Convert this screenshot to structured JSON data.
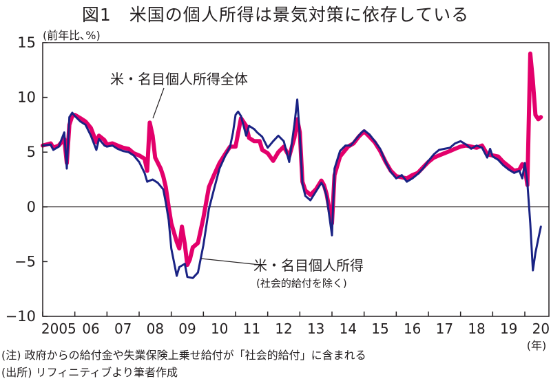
{
  "title": "図1　米国の個人所得は景気対策に依存している",
  "unit_label": "(前年比､%)",
  "year_suffix": "(年)",
  "notes": [
    "(注) 政府からの給付金や失業保険上乗せ給付が「社会的給付」に含まれる",
    "(出所) リフィニティブより筆者作成"
  ],
  "chart_data": {
    "type": "line",
    "title": "図1　米国の個人所得は景気対策に依存している",
    "ylabel": "(前年比､%)",
    "xlabel": "(年)",
    "ylim": [
      -10,
      15
    ],
    "xlim": [
      2005.0,
      2020.75
    ],
    "yticks": [
      15,
      10,
      5,
      0,
      -5,
      -10
    ],
    "ytick_labels": [
      "15",
      "10",
      "5",
      "0",
      "−5",
      "−10"
    ],
    "xticks": [
      {
        "x": 2005.0,
        "label": "2005"
      },
      {
        "x": 2006.0,
        "label": "06"
      },
      {
        "x": 2007.0,
        "label": "07"
      },
      {
        "x": 2008.0,
        "label": "08"
      },
      {
        "x": 2009.0,
        "label": "09"
      },
      {
        "x": 2010.0,
        "label": "10"
      },
      {
        "x": 2011.0,
        "label": "11"
      },
      {
        "x": 2012.0,
        "label": "12"
      },
      {
        "x": 2013.0,
        "label": "13"
      },
      {
        "x": 2014.0,
        "label": "14"
      },
      {
        "x": 2015.0,
        "label": "15"
      },
      {
        "x": 2016.0,
        "label": "16"
      },
      {
        "x": 2017.0,
        "label": "17"
      },
      {
        "x": 2018.0,
        "label": "18"
      },
      {
        "x": 2019.0,
        "label": "19"
      },
      {
        "x": 2020.0,
        "label": "20"
      }
    ],
    "grid": false,
    "reference_line": 0,
    "series": [
      {
        "name": "米・名目個人所得全体",
        "color": "#e3006b",
        "points": [
          [
            2005.0,
            5.6
          ],
          [
            2005.25,
            5.8
          ],
          [
            2005.33,
            5.4
          ],
          [
            2005.5,
            5.6
          ],
          [
            2005.67,
            6.2
          ],
          [
            2005.75,
            4.0
          ],
          [
            2005.83,
            7.5
          ],
          [
            2005.92,
            8.3
          ],
          [
            2006.0,
            8.4
          ],
          [
            2006.17,
            8.1
          ],
          [
            2006.33,
            7.8
          ],
          [
            2006.5,
            7.2
          ],
          [
            2006.67,
            5.9
          ],
          [
            2006.75,
            6.5
          ],
          [
            2006.92,
            6.1
          ],
          [
            2007.0,
            5.7
          ],
          [
            2007.17,
            5.8
          ],
          [
            2007.33,
            5.6
          ],
          [
            2007.5,
            5.4
          ],
          [
            2007.67,
            5.3
          ],
          [
            2007.83,
            4.9
          ],
          [
            2008.0,
            4.7
          ],
          [
            2008.17,
            4.4
          ],
          [
            2008.25,
            3.3
          ],
          [
            2008.33,
            7.7
          ],
          [
            2008.42,
            6.5
          ],
          [
            2008.5,
            4.5
          ],
          [
            2008.67,
            3.5
          ],
          [
            2008.75,
            2.8
          ],
          [
            2008.83,
            1.8
          ],
          [
            2008.92,
            0.0
          ],
          [
            2009.0,
            -1.5
          ],
          [
            2009.17,
            -3.2
          ],
          [
            2009.25,
            -3.8
          ],
          [
            2009.33,
            -1.8
          ],
          [
            2009.42,
            -3.4
          ],
          [
            2009.5,
            -5.3
          ],
          [
            2009.58,
            -4.8
          ],
          [
            2009.67,
            -3.7
          ],
          [
            2009.83,
            -3.3
          ],
          [
            2010.0,
            -1.0
          ],
          [
            2010.17,
            1.8
          ],
          [
            2010.33,
            2.9
          ],
          [
            2010.5,
            4.0
          ],
          [
            2010.67,
            4.8
          ],
          [
            2010.83,
            5.5
          ],
          [
            2011.0,
            5.5
          ],
          [
            2011.17,
            8.1
          ],
          [
            2011.33,
            7.4
          ],
          [
            2011.42,
            6.3
          ],
          [
            2011.58,
            6.0
          ],
          [
            2011.75,
            6.0
          ],
          [
            2011.83,
            5.2
          ],
          [
            2012.0,
            4.9
          ],
          [
            2012.17,
            4.2
          ],
          [
            2012.33,
            5.0
          ],
          [
            2012.5,
            5.5
          ],
          [
            2012.67,
            4.6
          ],
          [
            2012.83,
            6.3
          ],
          [
            2012.92,
            8.0
          ],
          [
            2013.0,
            6.8
          ],
          [
            2013.08,
            2.3
          ],
          [
            2013.17,
            1.5
          ],
          [
            2013.33,
            1.1
          ],
          [
            2013.5,
            1.6
          ],
          [
            2013.67,
            2.4
          ],
          [
            2013.75,
            2.0
          ],
          [
            2013.83,
            1.2
          ],
          [
            2014.0,
            -1.5
          ],
          [
            2014.08,
            2.9
          ],
          [
            2014.25,
            4.6
          ],
          [
            2014.5,
            5.5
          ],
          [
            2014.67,
            5.8
          ],
          [
            2014.83,
            6.4
          ],
          [
            2015.0,
            6.9
          ],
          [
            2015.17,
            6.4
          ],
          [
            2015.33,
            5.9
          ],
          [
            2015.5,
            5.1
          ],
          [
            2015.67,
            4.1
          ],
          [
            2015.83,
            3.3
          ],
          [
            2016.0,
            2.8
          ],
          [
            2016.17,
            2.7
          ],
          [
            2016.33,
            2.6
          ],
          [
            2016.5,
            2.9
          ],
          [
            2016.67,
            3.1
          ],
          [
            2016.83,
            3.6
          ],
          [
            2017.0,
            4.1
          ],
          [
            2017.17,
            4.5
          ],
          [
            2017.33,
            4.7
          ],
          [
            2017.5,
            4.9
          ],
          [
            2017.67,
            5.1
          ],
          [
            2017.83,
            5.3
          ],
          [
            2018.0,
            5.5
          ],
          [
            2018.17,
            5.6
          ],
          [
            2018.33,
            5.5
          ],
          [
            2018.5,
            5.4
          ],
          [
            2018.67,
            5.6
          ],
          [
            2018.83,
            4.8
          ],
          [
            2019.0,
            4.7
          ],
          [
            2019.17,
            4.6
          ],
          [
            2019.33,
            4.1
          ],
          [
            2019.5,
            3.7
          ],
          [
            2019.67,
            3.3
          ],
          [
            2019.83,
            3.4
          ],
          [
            2019.92,
            3.9
          ],
          [
            2020.0,
            3.6
          ],
          [
            2020.08,
            2.0
          ],
          [
            2020.17,
            14.0
          ],
          [
            2020.25,
            11.5
          ],
          [
            2020.33,
            8.4
          ],
          [
            2020.42,
            8.0
          ],
          [
            2020.5,
            8.2
          ]
        ]
      },
      {
        "name": "米・名目個人所得(社会的給付を除く)",
        "color": "#1a2384",
        "points": [
          [
            2005.0,
            5.6
          ],
          [
            2005.25,
            5.7
          ],
          [
            2005.33,
            5.2
          ],
          [
            2005.5,
            5.5
          ],
          [
            2005.67,
            6.8
          ],
          [
            2005.75,
            3.5
          ],
          [
            2005.83,
            8.2
          ],
          [
            2005.92,
            8.6
          ],
          [
            2006.0,
            8.3
          ],
          [
            2006.17,
            7.8
          ],
          [
            2006.33,
            7.5
          ],
          [
            2006.5,
            6.5
          ],
          [
            2006.67,
            5.2
          ],
          [
            2006.75,
            6.2
          ],
          [
            2006.92,
            5.6
          ],
          [
            2007.0,
            5.5
          ],
          [
            2007.17,
            5.6
          ],
          [
            2007.33,
            5.3
          ],
          [
            2007.5,
            5.1
          ],
          [
            2007.67,
            5.0
          ],
          [
            2007.83,
            4.7
          ],
          [
            2008.0,
            4.1
          ],
          [
            2008.17,
            3.1
          ],
          [
            2008.25,
            2.3
          ],
          [
            2008.42,
            2.5
          ],
          [
            2008.58,
            2.2
          ],
          [
            2008.75,
            1.6
          ],
          [
            2008.83,
            0.4
          ],
          [
            2008.92,
            -1.2
          ],
          [
            2009.0,
            -3.8
          ],
          [
            2009.17,
            -6.3
          ],
          [
            2009.25,
            -5.5
          ],
          [
            2009.42,
            -5.2
          ],
          [
            2009.5,
            -6.4
          ],
          [
            2009.67,
            -6.5
          ],
          [
            2009.83,
            -6.0
          ],
          [
            2010.0,
            -3.5
          ],
          [
            2010.17,
            -0.2
          ],
          [
            2010.33,
            1.6
          ],
          [
            2010.5,
            3.5
          ],
          [
            2010.67,
            4.6
          ],
          [
            2010.83,
            5.5
          ],
          [
            2010.92,
            6.8
          ],
          [
            2011.0,
            8.4
          ],
          [
            2011.08,
            8.7
          ],
          [
            2011.17,
            8.3
          ],
          [
            2011.33,
            6.5
          ],
          [
            2011.42,
            7.4
          ],
          [
            2011.58,
            7.1
          ],
          [
            2011.67,
            6.8
          ],
          [
            2011.83,
            6.4
          ],
          [
            2012.0,
            5.4
          ],
          [
            2012.17,
            6.0
          ],
          [
            2012.33,
            6.5
          ],
          [
            2012.5,
            6.0
          ],
          [
            2012.67,
            4.1
          ],
          [
            2012.83,
            7.5
          ],
          [
            2012.92,
            9.8
          ],
          [
            2013.0,
            6.5
          ],
          [
            2013.08,
            2.1
          ],
          [
            2013.17,
            1.0
          ],
          [
            2013.33,
            0.6
          ],
          [
            2013.5,
            1.4
          ],
          [
            2013.67,
            2.2
          ],
          [
            2013.75,
            1.8
          ],
          [
            2013.83,
            1.0
          ],
          [
            2014.0,
            -2.6
          ],
          [
            2014.08,
            3.5
          ],
          [
            2014.25,
            5.1
          ],
          [
            2014.42,
            5.6
          ],
          [
            2014.58,
            5.6
          ],
          [
            2014.75,
            6.2
          ],
          [
            2014.92,
            6.8
          ],
          [
            2015.0,
            7.0
          ],
          [
            2015.17,
            6.6
          ],
          [
            2015.33,
            6.0
          ],
          [
            2015.5,
            5.3
          ],
          [
            2015.67,
            4.1
          ],
          [
            2015.83,
            3.2
          ],
          [
            2016.0,
            2.6
          ],
          [
            2016.17,
            2.9
          ],
          [
            2016.33,
            2.3
          ],
          [
            2016.5,
            2.6
          ],
          [
            2016.67,
            3.0
          ],
          [
            2016.83,
            3.5
          ],
          [
            2017.0,
            4.2
          ],
          [
            2017.17,
            4.8
          ],
          [
            2017.33,
            5.2
          ],
          [
            2017.5,
            5.3
          ],
          [
            2017.67,
            5.4
          ],
          [
            2017.83,
            5.8
          ],
          [
            2018.0,
            6.0
          ],
          [
            2018.17,
            5.7
          ],
          [
            2018.33,
            5.3
          ],
          [
            2018.5,
            5.6
          ],
          [
            2018.67,
            5.4
          ],
          [
            2018.83,
            4.5
          ],
          [
            2018.92,
            5.3
          ],
          [
            2019.0,
            4.6
          ],
          [
            2019.17,
            4.3
          ],
          [
            2019.33,
            3.8
          ],
          [
            2019.5,
            3.4
          ],
          [
            2019.67,
            3.1
          ],
          [
            2019.83,
            3.3
          ],
          [
            2019.92,
            2.6
          ],
          [
            2020.0,
            4.0
          ],
          [
            2020.08,
            2.2
          ],
          [
            2020.17,
            -1.5
          ],
          [
            2020.25,
            -5.8
          ],
          [
            2020.33,
            -4.2
          ],
          [
            2020.42,
            -2.9
          ],
          [
            2020.5,
            -1.8
          ]
        ]
      }
    ],
    "annotations": [
      {
        "text": "米・名目個人所得全体",
        "target_series": 0
      },
      {
        "text": "米・名目個人所得",
        "subtext": "(社会的給付を除く)",
        "target_series": 1
      }
    ]
  }
}
